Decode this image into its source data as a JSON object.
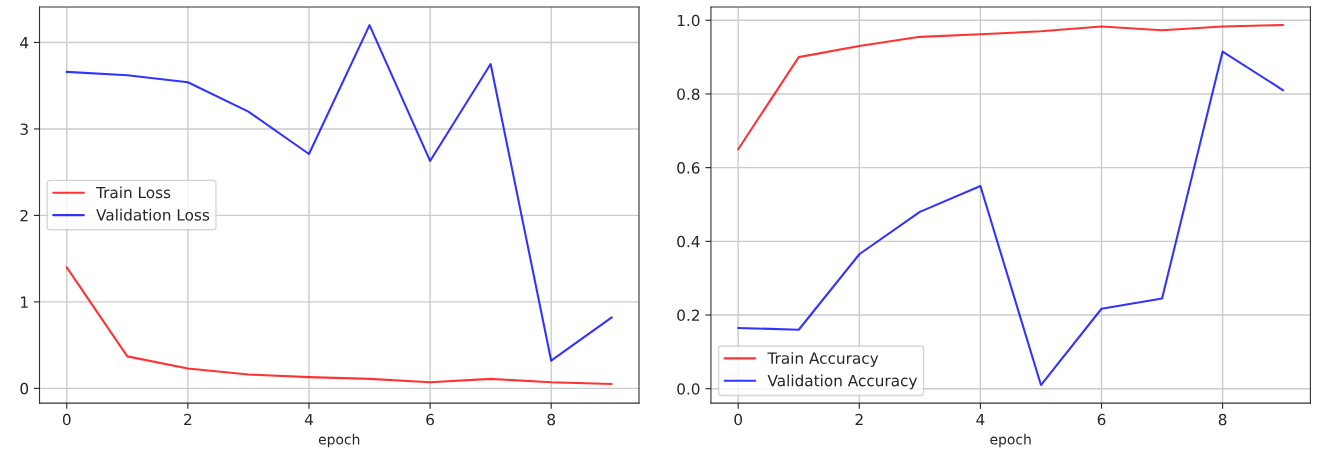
{
  "chart_data": [
    {
      "type": "line",
      "xlabel": "epoch",
      "x": [
        0,
        1,
        2,
        3,
        4,
        5,
        6,
        7,
        8,
        9
      ],
      "xlim": [
        -0.45,
        9.45
      ],
      "xticks": [
        0,
        2,
        4,
        6,
        8
      ],
      "ylim": [
        -0.17,
        4.41
      ],
      "yticks": [
        0,
        1,
        2,
        3,
        4
      ],
      "grid": true,
      "legend": "center left",
      "series": [
        {
          "name": "Train Loss",
          "color": "#ff0000",
          "values": [
            1.4,
            0.37,
            0.23,
            0.16,
            0.13,
            0.11,
            0.07,
            0.11,
            0.07,
            0.05
          ]
        },
        {
          "name": "Validation Loss",
          "color": "#0000ff",
          "values": [
            3.66,
            3.62,
            3.54,
            3.2,
            2.71,
            4.2,
            2.63,
            3.75,
            0.32,
            0.82
          ]
        }
      ]
    },
    {
      "type": "line",
      "xlabel": "epoch",
      "x": [
        0,
        1,
        2,
        3,
        4,
        5,
        6,
        7,
        8,
        9
      ],
      "xlim": [
        -0.45,
        9.45
      ],
      "xticks": [
        0,
        2,
        4,
        6,
        8
      ],
      "ylim": [
        -0.039,
        1.036
      ],
      "yticks": [
        {
          "value": 0,
          "label": "0.0"
        },
        {
          "value": 0.2,
          "label": "0.2"
        },
        {
          "value": 0.4,
          "label": "0.4"
        },
        {
          "value": 0.6,
          "label": "0.6"
        },
        {
          "value": 0.8,
          "label": "0.8"
        },
        {
          "value": 1,
          "label": "1.0"
        }
      ],
      "grid": true,
      "legend": "lower left",
      "series": [
        {
          "name": "Train Accuracy",
          "color": "#ff0000",
          "values": [
            0.65,
            0.9,
            0.93,
            0.955,
            0.962,
            0.97,
            0.983,
            0.973,
            0.983,
            0.987
          ]
        },
        {
          "name": "Validation Accuracy",
          "color": "#0000ff",
          "values": [
            0.165,
            0.16,
            0.365,
            0.48,
            0.55,
            0.01,
            0.217,
            0.245,
            0.915,
            0.81
          ]
        }
      ]
    }
  ]
}
